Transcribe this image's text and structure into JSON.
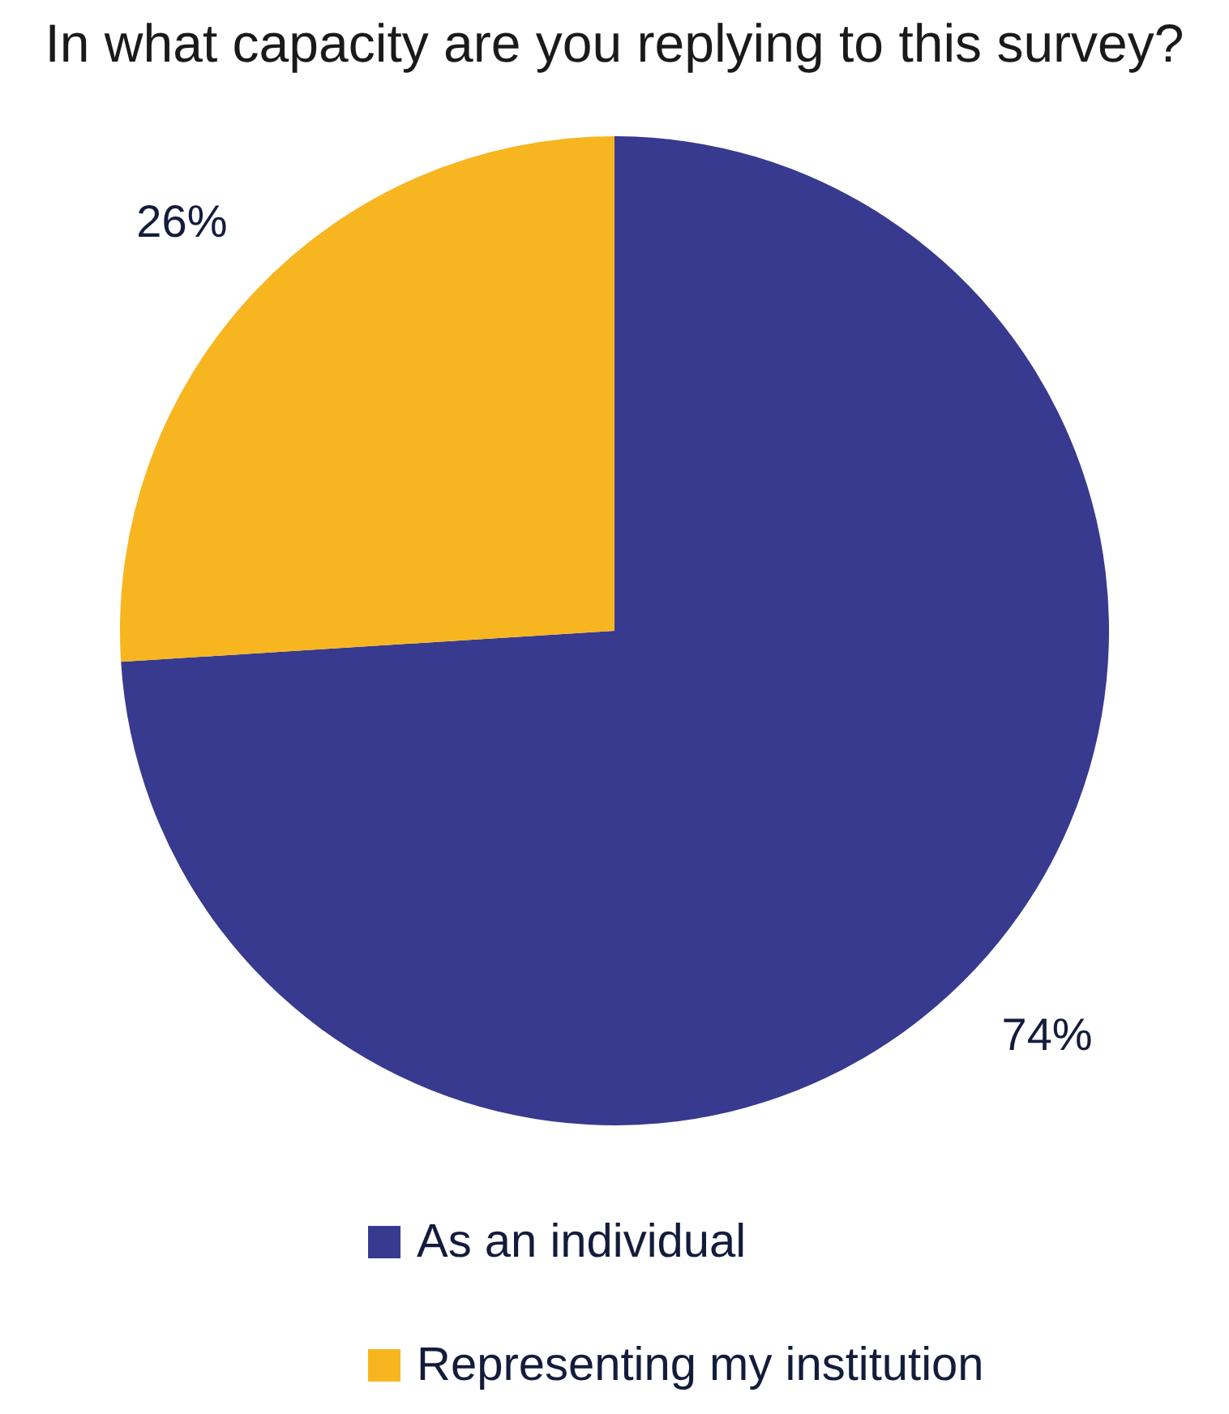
{
  "chart_data": {
    "type": "pie",
    "title": "In what capacity are you replying to this survey?",
    "categories": [
      "As an individual",
      "Representing my institution"
    ],
    "values": [
      74,
      26
    ],
    "colors": [
      "#383a8f",
      "#f7b520"
    ],
    "value_labels": [
      "74%",
      "26%"
    ],
    "legend": "bottom"
  }
}
